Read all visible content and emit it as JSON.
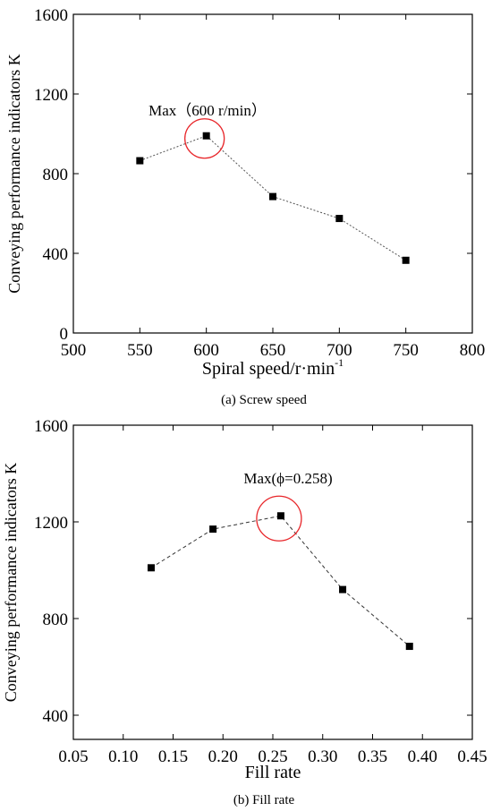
{
  "chart_data": [
    {
      "type": "line",
      "caption": "(a) Screw speed",
      "xlabel": "Spiral speed/r·min",
      "xlabel_superscript": "-1",
      "ylabel": "Conveying performance indicators K",
      "xlim": [
        500,
        800
      ],
      "ylim": [
        0,
        1600
      ],
      "xticks": [
        500,
        550,
        600,
        650,
        700,
        750,
        800
      ],
      "yticks": [
        0,
        400,
        800,
        1200,
        1600
      ],
      "xtick_labels": [
        "500",
        "550",
        "600",
        "650",
        "700",
        "750",
        "800"
      ],
      "ytick_labels": [
        "0",
        "400",
        "800",
        "1200",
        "1600"
      ],
      "grid": false,
      "line_style": "dotted",
      "marker": "square",
      "x": [
        550,
        600,
        650,
        700,
        750
      ],
      "y": [
        865,
        990,
        685,
        575,
        365
      ],
      "annotation": {
        "text": "Max（600 r/min）",
        "x": 600,
        "y": 990,
        "highlight": "circle",
        "highlight_color": "#e8262a"
      }
    },
    {
      "type": "line",
      "caption": "(b) Fill rate",
      "xlabel": "Fill rate",
      "xlabel_superscript": "",
      "ylabel": "Conveying performance indicators K",
      "xlim": [
        0.05,
        0.45
      ],
      "ylim": [
        300,
        1600
      ],
      "xticks": [
        0.05,
        0.1,
        0.15,
        0.2,
        0.25,
        0.3,
        0.35,
        0.4,
        0.45
      ],
      "yticks": [
        400,
        800,
        1200,
        1600
      ],
      "xtick_labels": [
        "0.05",
        "0.10",
        "0.15",
        "0.20",
        "0.25",
        "0.30",
        "0.35",
        "0.40",
        "0.45"
      ],
      "ytick_labels": [
        "400",
        "800",
        "1200",
        "1600"
      ],
      "grid": false,
      "line_style": "dashed",
      "marker": "square",
      "x": [
        0.128,
        0.19,
        0.258,
        0.32,
        0.387
      ],
      "y": [
        1010,
        1170,
        1225,
        920,
        685
      ],
      "annotation": {
        "text": "Max(ϕ=0.258)",
        "x": 0.258,
        "y": 1225,
        "highlight": "circle",
        "highlight_color": "#e8262a"
      }
    }
  ]
}
